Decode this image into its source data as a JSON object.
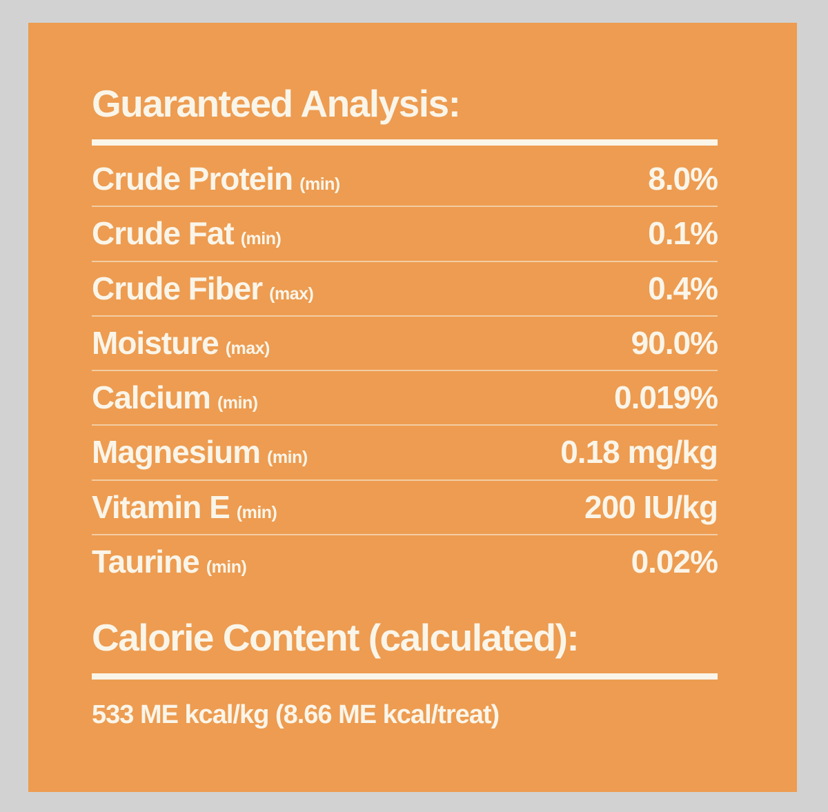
{
  "colors": {
    "background": "#d2d2d2",
    "panel": "#ed9c51",
    "text": "#faf5e9"
  },
  "guaranteed_analysis": {
    "title": "Guaranteed Analysis:",
    "rows": [
      {
        "label": "Crude Protein",
        "qualifier": "(min)",
        "value": "8.0%"
      },
      {
        "label": "Crude Fat",
        "qualifier": "(min)",
        "value": "0.1%"
      },
      {
        "label": "Crude Fiber",
        "qualifier": "(max)",
        "value": "0.4%"
      },
      {
        "label": "Moisture",
        "qualifier": "(max)",
        "value": "90.0%"
      },
      {
        "label": "Calcium",
        "qualifier": "(min)",
        "value": "0.019%"
      },
      {
        "label": "Magnesium",
        "qualifier": "(min)",
        "value": "0.18 mg/kg"
      },
      {
        "label": "Vitamin E",
        "qualifier": "(min)",
        "value": "200 IU/kg"
      },
      {
        "label": "Taurine",
        "qualifier": "(min)",
        "value": "0.02%"
      }
    ]
  },
  "calorie_content": {
    "title": "Calorie Content (calculated):",
    "value": "533 ME kcal/kg (8.66 ME kcal/treat)"
  }
}
